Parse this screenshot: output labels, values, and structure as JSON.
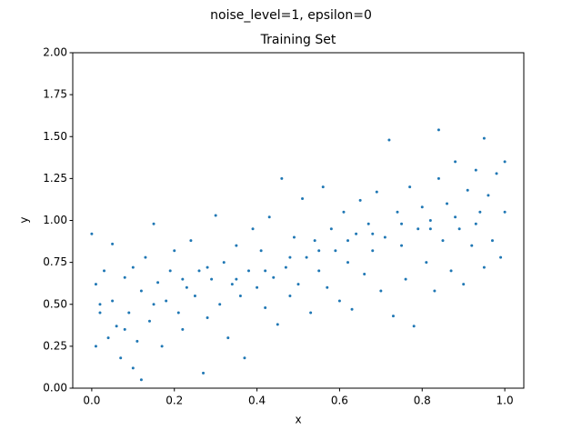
{
  "chart_data": {
    "type": "scatter",
    "suptitle": "noise_level=1, epsilon=0",
    "title": "Training Set",
    "xlabel": "x",
    "ylabel": "y",
    "color": "#1f77b4",
    "xlim": [
      -0.046,
      1.046
    ],
    "ylim": [
      0,
      2
    ],
    "xticks": [
      {
        "value": 0,
        "label": "0.0"
      },
      0.2,
      0.4,
      0.6,
      0.8,
      {
        "value": 1,
        "label": "1.0"
      }
    ],
    "yticks": [
      {
        "value": 0,
        "label": "0.00"
      },
      {
        "value": 0.25,
        "label": "0.25"
      },
      {
        "value": 0.5,
        "label": "0.50"
      },
      {
        "value": 0.75,
        "label": "0.75"
      },
      {
        "value": 1,
        "label": "1.00"
      },
      {
        "value": 1.25,
        "label": "1.25"
      },
      {
        "value": 1.5,
        "label": "1.50"
      },
      {
        "value": 1.75,
        "label": "1.75"
      },
      {
        "value": 2,
        "label": "2.00"
      }
    ],
    "x": [
      0.0,
      0.01,
      0.01,
      0.02,
      0.03,
      0.04,
      0.05,
      0.05,
      0.06,
      0.07,
      0.08,
      0.09,
      0.1,
      0.1,
      0.11,
      0.12,
      0.12,
      0.13,
      0.14,
      0.15,
      0.16,
      0.17,
      0.18,
      0.19,
      0.2,
      0.21,
      0.22,
      0.23,
      0.24,
      0.25,
      0.26,
      0.27,
      0.28,
      0.29,
      0.3,
      0.31,
      0.32,
      0.33,
      0.34,
      0.35,
      0.36,
      0.37,
      0.38,
      0.39,
      0.4,
      0.41,
      0.42,
      0.43,
      0.44,
      0.45,
      0.46,
      0.47,
      0.48,
      0.49,
      0.5,
      0.51,
      0.52,
      0.53,
      0.54,
      0.55,
      0.56,
      0.57,
      0.58,
      0.59,
      0.6,
      0.61,
      0.62,
      0.63,
      0.64,
      0.65,
      0.66,
      0.67,
      0.68,
      0.69,
      0.7,
      0.71,
      0.72,
      0.73,
      0.74,
      0.75,
      0.76,
      0.77,
      0.78,
      0.79,
      0.8,
      0.81,
      0.82,
      0.83,
      0.84,
      0.84,
      0.85,
      0.86,
      0.87,
      0.88,
      0.89,
      0.9,
      0.91,
      0.92,
      0.93,
      0.94,
      0.95,
      0.95,
      0.96,
      0.97,
      0.98,
      0.99,
      1.0,
      1.0,
      0.02,
      0.08,
      0.15,
      0.22,
      0.28,
      0.35,
      0.42,
      0.48,
      0.55,
      0.62,
      0.68,
      0.75,
      0.82,
      0.88,
      0.93
    ],
    "values": [
      0.92,
      0.25,
      0.62,
      0.45,
      0.7,
      0.3,
      0.52,
      0.86,
      0.37,
      0.18,
      0.66,
      0.45,
      0.12,
      0.72,
      0.28,
      0.05,
      0.58,
      0.78,
      0.4,
      0.98,
      0.63,
      0.25,
      0.52,
      0.7,
      0.82,
      0.45,
      0.35,
      0.6,
      0.88,
      0.55,
      0.7,
      0.09,
      0.42,
      0.65,
      1.03,
      0.5,
      0.75,
      0.3,
      0.62,
      0.85,
      0.55,
      0.18,
      0.7,
      0.95,
      0.6,
      0.82,
      0.48,
      1.02,
      0.66,
      0.38,
      1.25,
      0.72,
      0.55,
      0.9,
      0.62,
      1.13,
      0.78,
      0.45,
      0.88,
      0.7,
      1.2,
      0.6,
      0.95,
      0.82,
      0.52,
      1.05,
      0.75,
      0.47,
      0.92,
      1.12,
      0.68,
      0.98,
      0.82,
      1.17,
      0.58,
      0.9,
      1.48,
      0.43,
      1.05,
      0.85,
      0.65,
      1.2,
      0.37,
      0.95,
      1.08,
      0.75,
      1.0,
      0.58,
      1.25,
      1.54,
      0.88,
      1.1,
      0.7,
      1.35,
      0.95,
      0.62,
      1.18,
      0.85,
      1.3,
      1.05,
      0.72,
      1.49,
      1.15,
      0.88,
      1.28,
      0.78,
      1.35,
      1.05,
      0.5,
      0.35,
      0.5,
      0.65,
      0.72,
      0.65,
      0.7,
      0.78,
      0.82,
      0.88,
      0.92,
      0.98,
      0.95,
      1.02,
      0.98
    ]
  }
}
